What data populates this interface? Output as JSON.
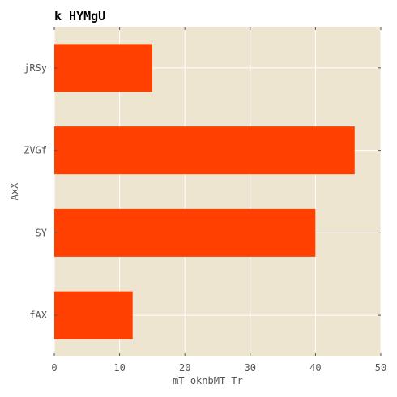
{
  "chart_data": {
    "type": "bar",
    "orientation": "horizontal",
    "title": "k HYMgU",
    "xlabel": "mT oknbMT  Tr",
    "ylabel": "AxX",
    "categories": [
      "jRSy",
      "ZVGf",
      "SY",
      "fAX"
    ],
    "values": [
      15,
      46,
      40,
      12
    ],
    "xlim": [
      0,
      50
    ],
    "xticks": [
      0,
      10,
      20,
      30,
      40,
      50
    ],
    "grid": true,
    "legend": "none",
    "colors": {
      "bar": "#ff4000",
      "plot_background": "#ede5d0",
      "grid": "#ffffff",
      "tick_text": "#555555"
    }
  }
}
